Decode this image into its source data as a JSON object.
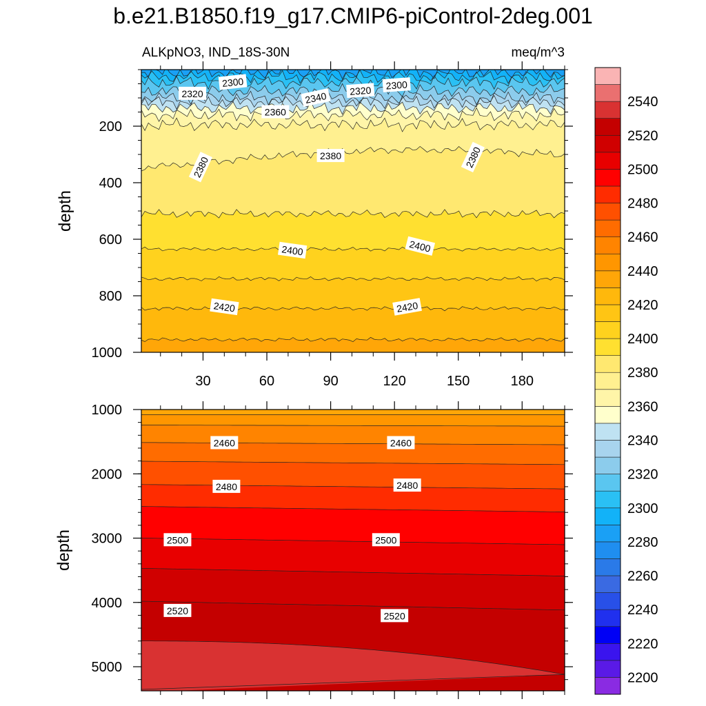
{
  "chart_data": {
    "type": "heatmap",
    "title": "b.e21.B1850.f19_g17.CMIP6-piControl-2deg.001",
    "variable": "ALKpNO3, IND_18S-30N",
    "units": "meq/m^3",
    "x": {
      "range": [
        1,
        200
      ],
      "ticks": [
        30,
        60,
        90,
        120,
        150,
        180
      ],
      "tick_labels": [
        "30",
        "60",
        "90",
        "120",
        "150",
        "180"
      ]
    },
    "panels": [
      {
        "name": "upper",
        "ylabel": "depth",
        "ylim": [
          0,
          1000
        ],
        "y_ticks": [
          200,
          400,
          600,
          800,
          1000
        ],
        "y_tick_labels": [
          "200",
          "400",
          "600",
          "800",
          "1000"
        ],
        "contour_levels": [
          {
            "value": 2290,
            "depth": 10
          },
          {
            "value": 2300,
            "depth": 25
          },
          {
            "value": 2310,
            "depth": 45
          },
          {
            "value": 2320,
            "depth": 75
          },
          {
            "value": 2330,
            "depth": 100
          },
          {
            "value": 2340,
            "depth": 115
          },
          {
            "value": 2350,
            "depth": 135
          },
          {
            "value": 2360,
            "depth": 160
          },
          {
            "value": 2370,
            "depth": 195
          },
          {
            "value": 2380,
            "depth": 330
          },
          {
            "value": 2390,
            "depth": 510
          },
          {
            "value": 2400,
            "depth": 635
          },
          {
            "value": 2410,
            "depth": 740
          },
          {
            "value": 2420,
            "depth": 845
          },
          {
            "value": 2430,
            "depth": 955
          }
        ],
        "labels": [
          {
            "text": "2300",
            "x": 44,
            "depth": 45
          },
          {
            "text": "2320",
            "x": 25,
            "depth": 85
          },
          {
            "text": "2340",
            "x": 83,
            "depth": 100
          },
          {
            "text": "2320",
            "x": 104,
            "depth": 75
          },
          {
            "text": "2300",
            "x": 121,
            "depth": 55
          },
          {
            "text": "2360",
            "x": 64,
            "depth": 150
          },
          {
            "text": "2380",
            "x": 29,
            "depth": 345
          },
          {
            "text": "2380",
            "x": 90,
            "depth": 305
          },
          {
            "text": "2380",
            "x": 157,
            "depth": 310
          },
          {
            "text": "2400",
            "x": 72,
            "depth": 640
          },
          {
            "text": "2400",
            "x": 132,
            "depth": 625
          },
          {
            "text": "2420",
            "x": 40,
            "depth": 840
          },
          {
            "text": "2420",
            "x": 126,
            "depth": 840
          }
        ]
      },
      {
        "name": "lower",
        "ylabel": "depth",
        "ylim": [
          1000,
          5375
        ],
        "y_ticks": [
          1000,
          2000,
          3000,
          4000,
          5000
        ],
        "y_tick_labels": [
          "1000",
          "2000",
          "3000",
          "4000",
          "5000"
        ],
        "contour_levels": [
          {
            "value": 2440,
            "depth": 1080
          },
          {
            "value": 2450,
            "depth": 1250
          },
          {
            "value": 2460,
            "depth": 1530
          },
          {
            "value": 2470,
            "depth": 1830
          },
          {
            "value": 2480,
            "depth": 2200
          },
          {
            "value": 2490,
            "depth": 2550
          },
          {
            "value": 2500,
            "depth": 3050
          },
          {
            "value": 2510,
            "depth": 3530
          },
          {
            "value": 2520,
            "depth": 4050
          },
          {
            "value": 2530,
            "depth": 4650
          }
        ],
        "labels": [
          {
            "text": "2460",
            "x": 40,
            "depth": 1520
          },
          {
            "text": "2460",
            "x": 123,
            "depth": 1520
          },
          {
            "text": "2480",
            "x": 41,
            "depth": 2200
          },
          {
            "text": "2480",
            "x": 126,
            "depth": 2180
          },
          {
            "text": "2500",
            "x": 18,
            "depth": 3030
          },
          {
            "text": "2500",
            "x": 116,
            "depth": 3030
          },
          {
            "text": "2520",
            "x": 18,
            "depth": 4130
          },
          {
            "text": "2520",
            "x": 120,
            "depth": 4210
          }
        ]
      }
    ],
    "colorbar": {
      "levels": [
        2200,
        2210,
        2220,
        2230,
        2240,
        2250,
        2260,
        2270,
        2280,
        2290,
        2300,
        2310,
        2320,
        2330,
        2340,
        2350,
        2360,
        2370,
        2380,
        2390,
        2400,
        2410,
        2420,
        2430,
        2440,
        2450,
        2460,
        2470,
        2480,
        2490,
        2500,
        2510,
        2520,
        2530,
        2540,
        2550
      ],
      "tick_labels": [
        "2200",
        "2220",
        "2240",
        "2260",
        "2280",
        "2300",
        "2320",
        "2340",
        "2360",
        "2380",
        "2400",
        "2420",
        "2440",
        "2460",
        "2480",
        "2500",
        "2520",
        "2540"
      ],
      "colors": [
        "#8a2be2",
        "#5a1ae6",
        "#3a14ee",
        "#0000f5",
        "#2030ee",
        "#2850e8",
        "#3a6ae2",
        "#2a7ae8",
        "#1f8ef0",
        "#1aa0f5",
        "#12b2f8",
        "#2ac0f4",
        "#5ac6f0",
        "#8cccec",
        "#a8d4ee",
        "#bfe2f2",
        "#ffffcc",
        "#fff5a8",
        "#fff090",
        "#ffe870",
        "#ffe030",
        "#ffd21e",
        "#ffc514",
        "#ffb80c",
        "#ffa608",
        "#ff9600",
        "#ff8400",
        "#ff6c00",
        "#ff5000",
        "#ff2c00",
        "#ff0000",
        "#e80000",
        "#d00000",
        "#c40000",
        "#d93232",
        "#ea7070",
        "#fab4b4"
      ]
    }
  }
}
